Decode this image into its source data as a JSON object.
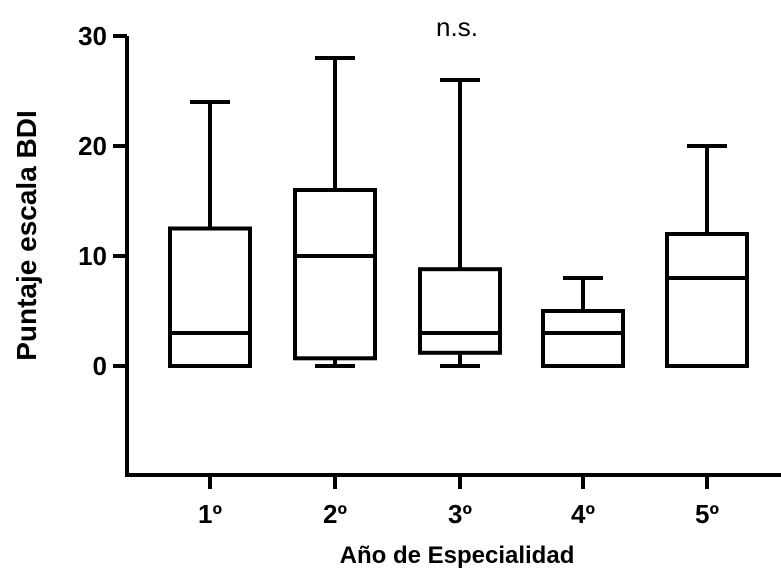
{
  "chart_data": {
    "type": "box",
    "annotation": "n.s.",
    "xlabel": "Año de Especialidad",
    "ylabel": "Puntaje escala BDI",
    "ylim": [
      -10,
      30
    ],
    "yticks": [
      0,
      10,
      20,
      30
    ],
    "categories": [
      "1º",
      "2º",
      "3º",
      "4º",
      "5º"
    ],
    "boxes": [
      {
        "min": 0,
        "q1": 0,
        "median": 3,
        "q3": 12.5,
        "max": 24
      },
      {
        "min": 0,
        "q1": 0.7,
        "median": 10,
        "q3": 16,
        "max": 28
      },
      {
        "min": 0,
        "q1": 1.2,
        "median": 3,
        "q3": 8.8,
        "max": 26
      },
      {
        "min": 0,
        "q1": 0,
        "median": 3,
        "q3": 5,
        "max": 8
      },
      {
        "min": 0,
        "q1": 0,
        "median": 8,
        "q3": 12,
        "max": 20
      }
    ],
    "grid": false,
    "legend": "none"
  }
}
